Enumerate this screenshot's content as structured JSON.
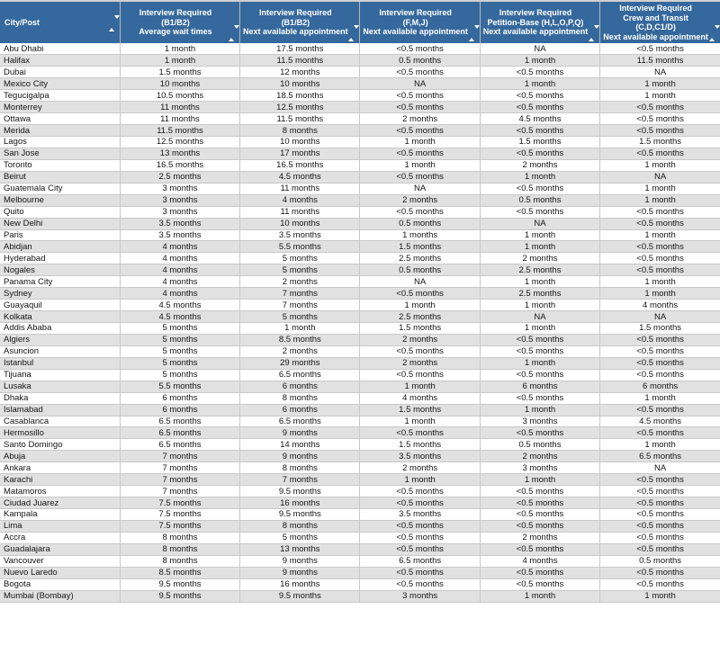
{
  "colors": {
    "header_bg": "#35689C",
    "header_text": "#FFFFFF",
    "row_alt": "#E1E1E1",
    "row_default": "#FFFFFF",
    "border": "#C9C9C9",
    "body_text": "#151515"
  },
  "table": {
    "columns": [
      {
        "id": "city",
        "label": "City/Post",
        "sort_icon": "sort-icon"
      },
      {
        "id": "b1b2-average-wait",
        "label": "Interview Required\n(B1/B2)\nAverage wait times",
        "sort_icon": "sort-icon"
      },
      {
        "id": "b1b2-next-appointment",
        "label": "Interview Required\n(B1/B2)\nNext available appointment",
        "sort_icon": "sort-icon"
      },
      {
        "id": "fmj-next-appointment",
        "label": "Interview Required\n(F,M,J)\nNext available appointment",
        "sort_icon": "sort-icon"
      },
      {
        "id": "petition-next-appointment",
        "label": "Interview Required\nPetition-Base (H,L,O,P,Q)\nNext available appointment",
        "sort_icon": "sort-icon"
      },
      {
        "id": "crew-transit-next-appointment",
        "label": "Interview Required\nCrew and Transit\n(C,D,C1/D)\nNext available appointment",
        "sort_icon": "sort-icon"
      }
    ],
    "rows": [
      {
        "city": "Abu Dhabi",
        "values": [
          "1 month",
          "17.5 months",
          "<0.5 months",
          "NA",
          "<0.5 months"
        ]
      },
      {
        "city": "Halifax",
        "values": [
          "1 month",
          "11.5 months",
          "0.5 months",
          "1 month",
          "11.5 months"
        ]
      },
      {
        "city": "Dubai",
        "values": [
          "1.5 months",
          "12 months",
          "<0.5 months",
          "<0.5 months",
          "NA"
        ]
      },
      {
        "city": "Mexico City",
        "values": [
          "10 months",
          "10 months",
          "NA",
          "1 month",
          "1 month"
        ]
      },
      {
        "city": "Tegucigalpa",
        "values": [
          "10.5 months",
          "18.5 months",
          "<0.5 months",
          "<0.5 months",
          "1 month"
        ]
      },
      {
        "city": "Monterrey",
        "values": [
          "11 months",
          "12.5 months",
          "<0.5 months",
          "<0.5 months",
          "<0.5 months"
        ]
      },
      {
        "city": "Ottawa",
        "values": [
          "11 months",
          "11.5 months",
          "2 months",
          "4.5 months",
          "<0.5 months"
        ]
      },
      {
        "city": "Merida",
        "values": [
          "11.5 months",
          "8 months",
          "<0.5 months",
          "<0.5 months",
          "<0.5 months"
        ]
      },
      {
        "city": "Lagos",
        "values": [
          "12.5 months",
          "10 months",
          "1 month",
          "1.5 months",
          "1.5 months"
        ]
      },
      {
        "city": "San Jose",
        "values": [
          "13 months",
          "17 months",
          "<0.5 months",
          "<0.5 months",
          "<0.5 months"
        ]
      },
      {
        "city": "Toronto",
        "values": [
          "16.5 months",
          "16.5 months",
          "1 month",
          "2 months",
          "1 month"
        ]
      },
      {
        "city": "Beirut",
        "values": [
          "2.5 months",
          "4.5 months",
          "<0.5 months",
          "1 month",
          "NA"
        ]
      },
      {
        "city": "Guatemala City",
        "values": [
          "3 months",
          "11 months",
          "NA",
          "<0.5 months",
          "1 month"
        ]
      },
      {
        "city": "Melbourne",
        "values": [
          "3 months",
          "4 months",
          "2 months",
          "0.5 months",
          "1 month"
        ]
      },
      {
        "city": "Quito",
        "values": [
          "3 months",
          "11 months",
          "<0.5 months",
          "<0.5 months",
          "<0.5 months"
        ]
      },
      {
        "city": "New Delhi",
        "values": [
          "3.5 months",
          "10 months",
          "0.5 months",
          "NA",
          "<0.5 months"
        ]
      },
      {
        "city": "Paris",
        "values": [
          "3.5 months",
          "3.5 months",
          "1 months",
          "1 month",
          "1 month"
        ]
      },
      {
        "city": "Abidjan",
        "values": [
          "4 months",
          "5.5 months",
          "1.5 months",
          "1 month",
          "<0.5 months"
        ]
      },
      {
        "city": "Hyderabad",
        "values": [
          "4 months",
          "5 months",
          "2.5 months",
          "2 months",
          "<0.5 months"
        ]
      },
      {
        "city": "Nogales",
        "values": [
          "4 months",
          "5 months",
          "0.5 months",
          "2.5 months",
          "<0.5 months"
        ]
      },
      {
        "city": "Panama City",
        "values": [
          "4 months",
          "2 months",
          "NA",
          "1 month",
          "1 month"
        ]
      },
      {
        "city": "Sydney",
        "values": [
          "4 months",
          "7 months",
          "<0.5 months",
          "2.5 months",
          "1 month"
        ]
      },
      {
        "city": "Guayaquil",
        "values": [
          "4.5 months",
          "7 months",
          "1 month",
          "1 month",
          "4 months"
        ]
      },
      {
        "city": "Kolkata",
        "values": [
          "4.5 months",
          "5 months",
          "2.5 months",
          "NA",
          "NA"
        ]
      },
      {
        "city": "Addis Ababa",
        "values": [
          "5 months",
          "1 month",
          "1.5 months",
          "1 month",
          "1.5 months"
        ]
      },
      {
        "city": "Algiers",
        "values": [
          "5 months",
          "8.5 months",
          "2 months",
          "<0.5 months",
          "<0.5 months"
        ]
      },
      {
        "city": "Asuncion",
        "values": [
          "5 months",
          "2 months",
          "<0.5 months",
          "<0.5 months",
          "<0.5 months"
        ]
      },
      {
        "city": "Istanbul",
        "values": [
          "5 months",
          "29 months",
          "2 months",
          "1 month",
          "<0.5 months"
        ]
      },
      {
        "city": "Tijuana",
        "values": [
          "5 months",
          "6.5 months",
          "<0.5 months",
          "<0.5 months",
          "<0.5 months"
        ]
      },
      {
        "city": "Lusaka",
        "values": [
          "5.5 months",
          "6 months",
          "1 month",
          "6 months",
          "6 months"
        ]
      },
      {
        "city": "Dhaka",
        "values": [
          "6 months",
          "8 months",
          "4 months",
          "<0.5 months",
          "1 month"
        ]
      },
      {
        "city": "Islamabad",
        "values": [
          "6 months",
          "6 months",
          "1.5 months",
          "1 month",
          "<0.5 months"
        ]
      },
      {
        "city": "Casablanca",
        "values": [
          "6.5 months",
          "6.5 months",
          "1 month",
          "3 months",
          "4.5 months"
        ]
      },
      {
        "city": "Hermosillo",
        "values": [
          "6.5 months",
          "9 months",
          "<0.5 months",
          "<0.5 months",
          "<0.5 months"
        ]
      },
      {
        "city": "Santo Domingo",
        "values": [
          "6.5 months",
          "14 months",
          "1.5 months",
          "0.5 months",
          "1 month"
        ]
      },
      {
        "city": "Abuja",
        "values": [
          "7 months",
          "9 months",
          "3.5 months",
          "2 months",
          "6.5 months"
        ]
      },
      {
        "city": "Ankara",
        "values": [
          "7 months",
          "8 months",
          "2 months",
          "3 months",
          "NA"
        ]
      },
      {
        "city": "Karachi",
        "values": [
          "7 months",
          "7 months",
          "1 month",
          "1 month",
          "<0.5 months"
        ]
      },
      {
        "city": "Matamoros",
        "values": [
          "7 months",
          "9.5 months",
          "<0.5 months",
          "<0.5 months",
          "<0.5 months"
        ]
      },
      {
        "city": "Ciudad Juarez",
        "values": [
          "7.5 months",
          "16 months",
          "<0.5 months",
          "<0.5 months",
          "<0.5 months"
        ]
      },
      {
        "city": "Kampala",
        "values": [
          "7.5 months",
          "9.5 months",
          "3.5 months",
          "<0.5 months",
          "<0.5 months"
        ]
      },
      {
        "city": "Lima",
        "values": [
          "7.5 months",
          "8 months",
          "<0.5 months",
          "<0.5 months",
          "<0.5 months"
        ]
      },
      {
        "city": "Accra",
        "values": [
          "8 months",
          "5 months",
          "<0.5 months",
          "2 months",
          "<0.5 months"
        ]
      },
      {
        "city": "Guadalajara",
        "values": [
          "8 months",
          "13 months",
          "<0.5 months",
          "<0.5 months",
          "<0.5 months"
        ]
      },
      {
        "city": "Vancouver",
        "values": [
          "8 months",
          "9 months",
          "6.5 months",
          "4 months",
          "0.5 months"
        ]
      },
      {
        "city": "Nuevo Laredo",
        "values": [
          "8.5 months",
          "9 months",
          "<0.5 months",
          "<0.5 months",
          "<0.5 months"
        ]
      },
      {
        "city": "Bogota",
        "values": [
          "9.5 months",
          "16 months",
          "<0.5 months",
          "<0.5 months",
          "<0.5 months"
        ]
      },
      {
        "city": "Mumbai (Bombay)",
        "values": [
          "9.5 months",
          "9.5 months",
          "3 months",
          "1 month",
          "1 month"
        ]
      }
    ]
  }
}
